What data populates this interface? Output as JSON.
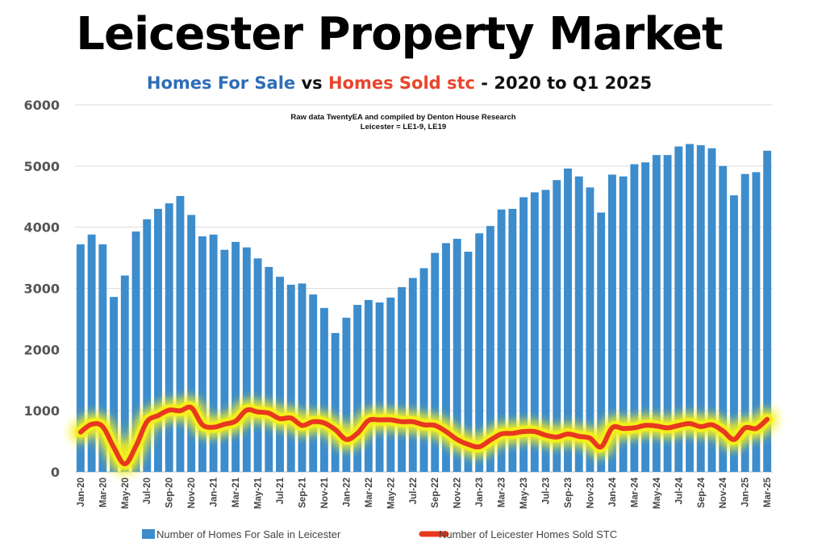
{
  "header": {
    "title": "Leicester Property Market",
    "subtitle_part1": "Homes For Sale",
    "subtitle_part2": " vs ",
    "subtitle_part3": "Homes Sold stc",
    "subtitle_part4": " - 2020 to Q1 2025",
    "credit_line1": "Raw data TwentyEA and compiled by Denton House Research",
    "credit_line2": "Leicester = LE1-9, LE19"
  },
  "colors": {
    "bar": "#3d8ccc",
    "line": "#e8381f",
    "glow": "#f4f01a",
    "title_blue": "#2f6db5",
    "title_red": "#e8452c"
  },
  "chart_data": {
    "type": "bar",
    "ylim": [
      0,
      6000
    ],
    "yticks": [
      0,
      1000,
      2000,
      3000,
      4000,
      5000,
      6000
    ],
    "grid": true,
    "legend_position": "bottom",
    "categories": [
      "Jan-20",
      "Feb-20",
      "Mar-20",
      "Apr-20",
      "May-20",
      "Jun-20",
      "Jul-20",
      "Aug-20",
      "Sep-20",
      "Oct-20",
      "Nov-20",
      "Dec-20",
      "Jan-21",
      "Feb-21",
      "Mar-21",
      "Apr-21",
      "May-21",
      "Jun-21",
      "Jul-21",
      "Aug-21",
      "Sep-21",
      "Oct-21",
      "Nov-21",
      "Dec-21",
      "Jan-22",
      "Feb-22",
      "Mar-22",
      "Apr-22",
      "May-22",
      "Jun-22",
      "Jul-22",
      "Aug-22",
      "Sep-22",
      "Oct-22",
      "Nov-22",
      "Dec-22",
      "Jan-23",
      "Feb-23",
      "Mar-23",
      "Apr-23",
      "May-23",
      "Jun-23",
      "Jul-23",
      "Aug-23",
      "Sep-23",
      "Oct-23",
      "Nov-23",
      "Dec-23",
      "Jan-24",
      "Feb-24",
      "Mar-24",
      "Apr-24",
      "May-24",
      "Jun-24",
      "Jul-24",
      "Aug-24",
      "Sep-24",
      "Oct-24",
      "Nov-24",
      "Dec-24",
      "Jan-25",
      "Feb-25",
      "Mar-25"
    ],
    "xtick_labels": [
      "Jan-20",
      "Mar-20",
      "May-20",
      "Jul-20",
      "Sep-20",
      "Nov-20",
      "Jan-21",
      "Mar-21",
      "May-21",
      "Jul-21",
      "Sep-21",
      "Nov-21",
      "Jan-22",
      "Mar-22",
      "May-22",
      "Jul-22",
      "Sep-22",
      "Nov-22",
      "Jan-23",
      "Mar-23",
      "May-23",
      "Jul-23",
      "Sep-23",
      "Nov-23",
      "Jan-24",
      "Mar-24",
      "May-24",
      "Jul-24",
      "Sep-24",
      "Nov-24",
      "Jan-25",
      "Mar-25"
    ],
    "series": [
      {
        "name": "Number of Homes For Sale in Leicester",
        "kind": "bar",
        "values": [
          3720,
          3880,
          3720,
          2860,
          3210,
          3930,
          4130,
          4300,
          4390,
          4510,
          4200,
          3850,
          3880,
          3630,
          3760,
          3670,
          3490,
          3350,
          3190,
          3060,
          3080,
          2900,
          2680,
          2270,
          2520,
          2730,
          2810,
          2770,
          2850,
          3020,
          3170,
          3330,
          3580,
          3740,
          3810,
          3600,
          3900,
          4020,
          4290,
          4300,
          4490,
          4570,
          4610,
          4770,
          4960,
          4830,
          4650,
          4240,
          4860,
          4830,
          5030,
          5060,
          5180,
          5180,
          5320,
          5360,
          5340,
          5290,
          5000,
          4520,
          4870,
          4900,
          5250
        ]
      },
      {
        "name": "Number of Leicester Homes Sold STC",
        "kind": "line",
        "values": [
          650,
          780,
          740,
          400,
          130,
          420,
          820,
          920,
          1010,
          1000,
          1050,
          770,
          730,
          780,
          830,
          1010,
          980,
          960,
          870,
          880,
          760,
          820,
          800,
          690,
          530,
          630,
          840,
          850,
          850,
          820,
          820,
          770,
          760,
          660,
          530,
          450,
          410,
          520,
          620,
          630,
          660,
          660,
          600,
          570,
          620,
          580,
          550,
          410,
          720,
          710,
          720,
          760,
          750,
          720,
          760,
          790,
          740,
          770,
          670,
          530,
          720,
          710,
          860
        ]
      }
    ]
  }
}
